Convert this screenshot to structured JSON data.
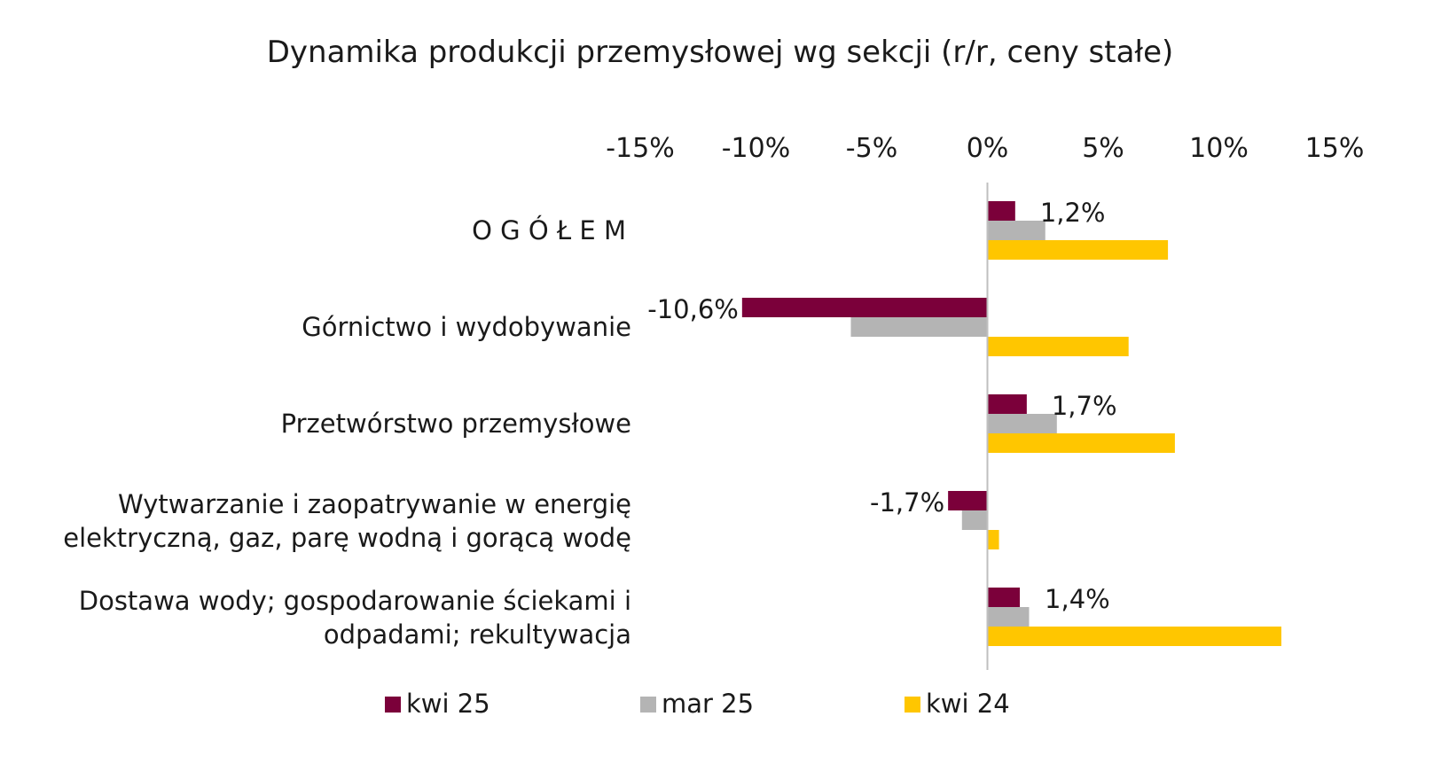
{
  "chart_data": {
    "type": "bar",
    "orientation": "horizontal",
    "title": "Dynamika produkcji przemysłowej wg sekcji (r/r, ceny stałe)",
    "xlabel": "",
    "ylabel": "",
    "xlim": [
      -15,
      15
    ],
    "x_ticks": [
      "-15%",
      "-10%",
      "-5%",
      "0%",
      "5%",
      "10%",
      "15%"
    ],
    "x_tick_values": [
      -15,
      -10,
      -5,
      0,
      5,
      10,
      15
    ],
    "x_axis_position": "top",
    "grid": false,
    "legend_position": "bottom",
    "categories": [
      [
        "O G Ó Ł E M"
      ],
      [
        "Górnictwo i wydobywanie"
      ],
      [
        "Przetwórstwo przemysłowe"
      ],
      [
        "Wytwarzanie i zaopatrywanie w energię",
        "elektryczną, gaz, parę wodną i gorącą wodę"
      ],
      [
        "Dostawa wody; gospodarowanie ściekami i",
        "odpadami; rekultywacja"
      ]
    ],
    "series": [
      {
        "name": "kwi 25",
        "color": "#7B003A",
        "values": [
          1.2,
          -10.6,
          1.7,
          -1.7,
          1.4
        ]
      },
      {
        "name": "mar 25",
        "color": "#B4B4B4",
        "values": [
          2.5,
          -5.9,
          3.0,
          -1.1,
          1.8
        ]
      },
      {
        "name": "kwi 24",
        "color": "#FFC600",
        "values": [
          7.8,
          6.1,
          8.1,
          0.5,
          12.7
        ]
      }
    ],
    "data_labels": [
      "1,2%",
      "-10,6%",
      "1,7%",
      "-1,7%",
      "1,4%"
    ]
  }
}
